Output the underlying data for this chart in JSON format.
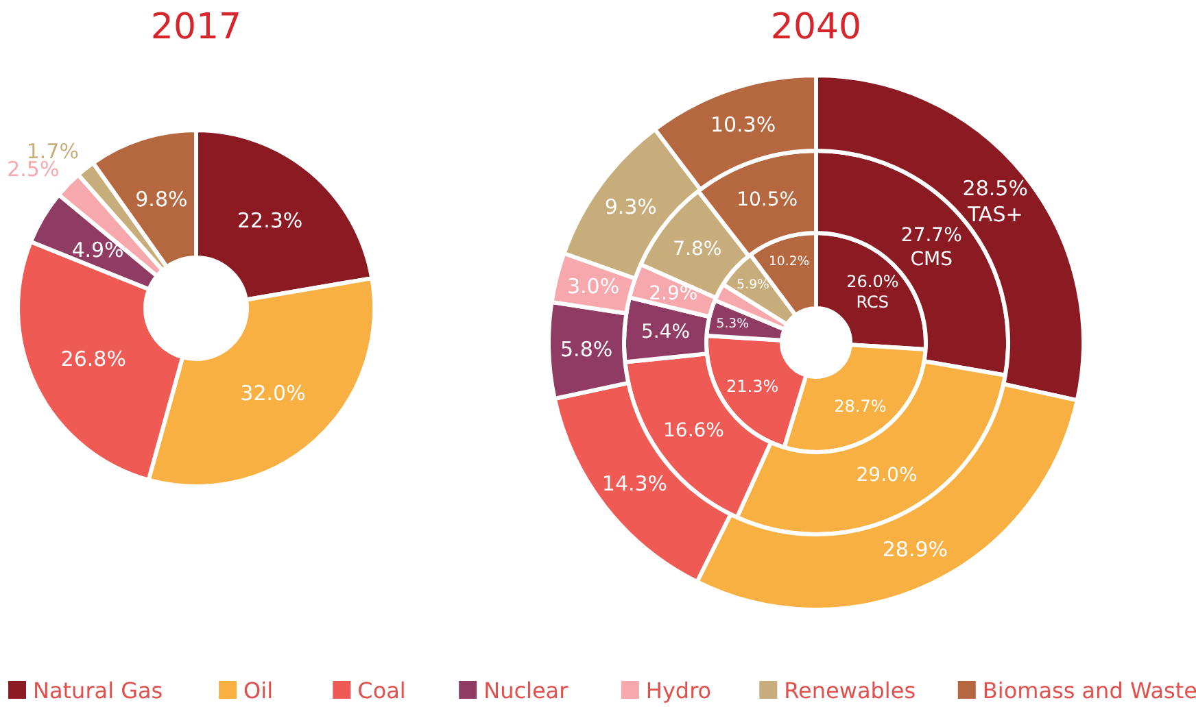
{
  "chart_data": [
    {
      "type": "donut",
      "title": "2017",
      "categories": [
        "Natural Gas",
        "Oil",
        "Coal",
        "Nuclear",
        "Hydro",
        "Renewables",
        "Biomass and Waste"
      ],
      "colors": [
        "#8b1a22",
        "#f9b042",
        "#f05a54",
        "#8f3b63",
        "#f7a8ad",
        "#c7ad7b",
        "#b5683f"
      ],
      "values": [
        22.3,
        32.0,
        26.8,
        4.9,
        2.5,
        1.7,
        9.8
      ],
      "value_labels": [
        "22.3%",
        "32.0%",
        "26.8%",
        "4.9%",
        "2.5%",
        "1.7%",
        "9.8%"
      ],
      "legend": "bottom"
    },
    {
      "type": "donut",
      "title": "2040",
      "categories": [
        null,
        null,
        null,
        null,
        null,
        null,
        null
      ],
      "colors": [
        "#8b1a22",
        "#f9b042",
        "#f05a54",
        "#8f3b63",
        "#f7a8ad",
        "#c7ad7b",
        "#b5683f"
      ],
      "series": [
        {
          "name": "RCS",
          "values": [
            26.0,
            28.7,
            21.3,
            5.3,
            2.6,
            5.9,
            10.2
          ],
          "value_labels": [
            "26.0%",
            "28.7%",
            "21.3%",
            "5.3%",
            null,
            "5.9%",
            "10.2%"
          ]
        },
        {
          "name": "CMS",
          "values": [
            27.7,
            29.0,
            16.6,
            5.4,
            2.9,
            7.8,
            10.5
          ],
          "value_labels": [
            "27.7%",
            "29.0%",
            "16.6%",
            "5.4%",
            "2.9%",
            "7.8%",
            "10.5%"
          ]
        },
        {
          "name": "TAS+",
          "values": [
            28.5,
            28.9,
            14.3,
            5.8,
            3.0,
            9.3,
            10.3
          ],
          "value_labels": [
            "28.5%",
            "28.9%",
            "14.3%",
            "5.8%",
            "3.0%",
            "9.3%",
            "10.3%"
          ]
        }
      ]
    }
  ]
}
